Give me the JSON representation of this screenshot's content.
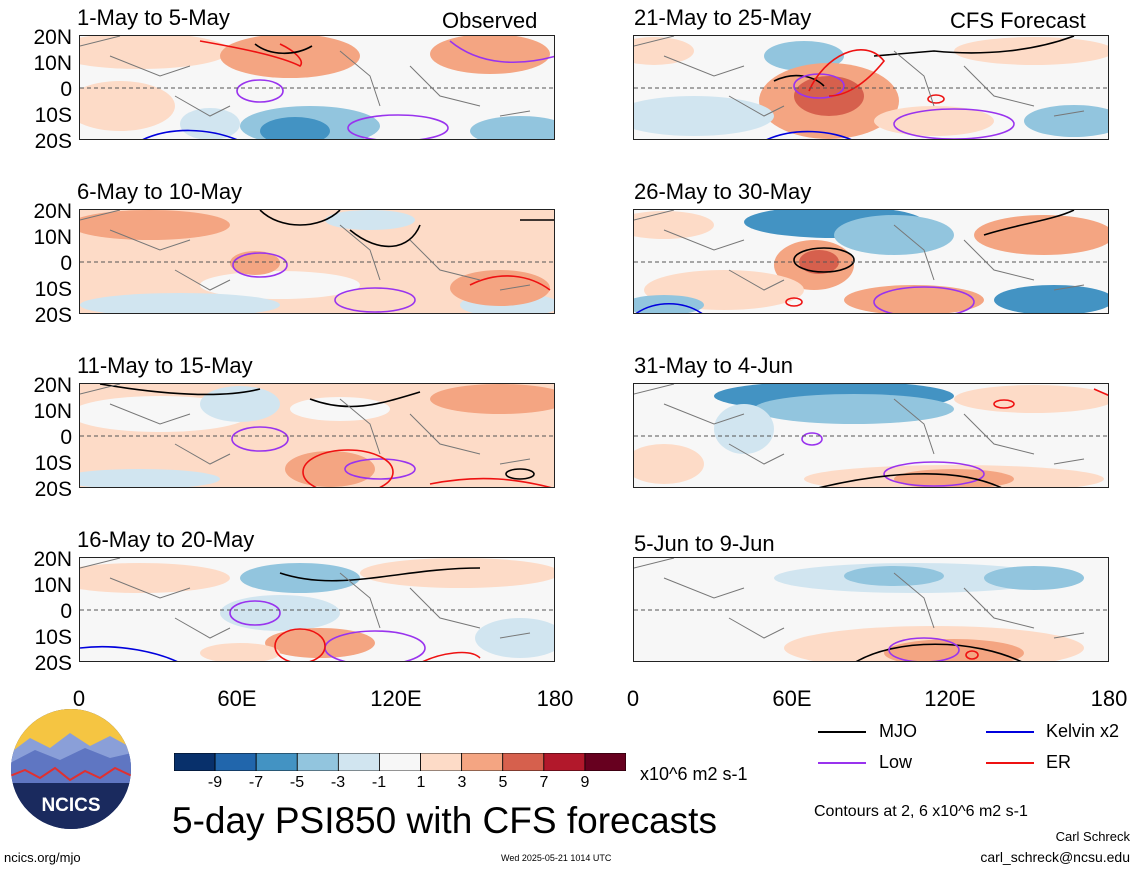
{
  "panels_left": [
    {
      "title": "1-May to 5-May",
      "tag": "Observed"
    },
    {
      "title": "6-May to 10-May",
      "tag": ""
    },
    {
      "title": "11-May to 15-May",
      "tag": ""
    },
    {
      "title": "16-May to 20-May",
      "tag": ""
    }
  ],
  "panels_right": [
    {
      "title": "21-May to 25-May",
      "tag": "CFS Forecast"
    },
    {
      "title": "26-May to 30-May",
      "tag": ""
    },
    {
      "title": "31-May to 4-Jun",
      "tag": ""
    },
    {
      "title": "5-Jun to 9-Jun",
      "tag": ""
    }
  ],
  "axis": {
    "lat_ticks": [
      "20N",
      "10N",
      "0",
      "10S",
      "20S"
    ],
    "lon_ticks": [
      "0",
      "60E",
      "120E",
      "180"
    ]
  },
  "colorbar": {
    "labels": [
      "-9",
      "-7",
      "-5",
      "-3",
      "-1",
      "1",
      "3",
      "5",
      "7",
      "9"
    ],
    "colors": [
      "#08306b",
      "#2166ac",
      "#4393c3",
      "#92c5de",
      "#d1e5f0",
      "#f7f7f7",
      "#fddbc7",
      "#f4a582",
      "#d6604d",
      "#b2182b",
      "#67001f"
    ],
    "units": "x10^6 m2 s-1"
  },
  "legend": {
    "mjo": "MJO",
    "mjo_color": "#000000",
    "kelvin": "Kelvin x2",
    "kelvin_color": "#0000dd",
    "low": "Low",
    "low_color": "#9933ee",
    "er": "ER",
    "er_color": "#ee1111"
  },
  "main_title": "5-day PSI850 with CFS forecasts",
  "contours_note": "Contours at 2, 6 x10^6 m2 s-1",
  "author": "Carl Schreck",
  "email": "carl_schreck@ncsu.edu",
  "url": "ncics.org/mjo",
  "timestamp": "Wed 2025-05-21 1014 UTC",
  "logo_text": "NCICS",
  "chart_data": {
    "type": "heatmap",
    "variable": "5-day PSI850 anomaly",
    "units": "x10^6 m2 s-1",
    "color_levels": [
      -9,
      -7,
      -5,
      -3,
      -1,
      1,
      3,
      5,
      7,
      9
    ],
    "lon_range": [
      0,
      180
    ],
    "lat_range": [
      -20,
      20
    ],
    "contour_levels": [
      2,
      6
    ],
    "contour_fields": [
      "MJO",
      "Kelvin x2",
      "Low",
      "ER"
    ],
    "panels": [
      "1-May to 5-May",
      "6-May to 10-May",
      "11-May to 15-May",
      "16-May to 20-May",
      "21-May to 25-May",
      "26-May to 30-May",
      "31-May to 4-Jun",
      "5-Jun to 9-Jun"
    ]
  }
}
